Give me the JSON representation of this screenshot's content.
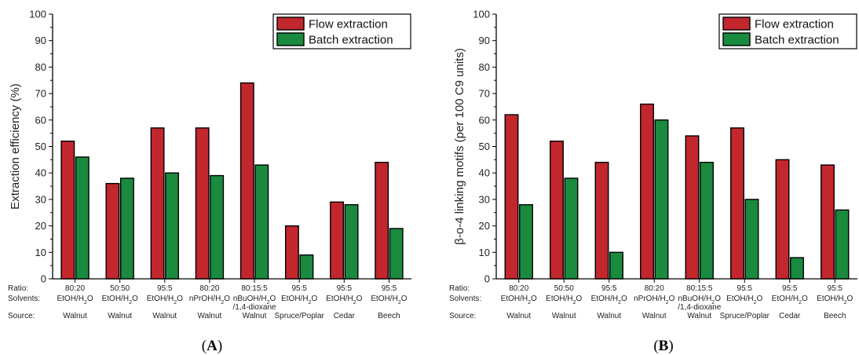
{
  "row_labels": {
    "ratio": "Ratio:",
    "solvents": "Solvents:",
    "source": "Source:"
  },
  "colors": {
    "flow": "#c1272d",
    "batch": "#1a8a3e"
  },
  "chart_data": [
    {
      "type": "bar",
      "panel": "(A)",
      "ylabel": "Extraction efficiency (%)",
      "ylim": [
        0,
        100
      ],
      "yticks": [
        0,
        10,
        20,
        30,
        40,
        50,
        60,
        70,
        80,
        90,
        100
      ],
      "legend_position": "top-right",
      "categories": [
        "Walnut",
        "Walnut",
        "Walnut",
        "Walnut",
        "Walnut",
        "Spruce/Poplar",
        "Cedar",
        "Beech"
      ],
      "ratios": [
        "80:20",
        "50:50",
        "95:5",
        "80:20",
        "80:15:5",
        "95:5",
        "95:5",
        "95:5"
      ],
      "solvents": [
        "EtOH/H₂O",
        "EtOH/H₂O",
        "EtOH/H₂O",
        "nPrOH/H₂O",
        "nBuOH/H₂O\n/1,4-dioxane",
        "EtOH/H₂O",
        "EtOH/H₂O",
        "EtOH/H₂O"
      ],
      "series": [
        {
          "name": "Flow extraction",
          "values": [
            52,
            36,
            57,
            57,
            74,
            20,
            29,
            44
          ]
        },
        {
          "name": "Batch extraction",
          "values": [
            46,
            38,
            40,
            39,
            43,
            9,
            28,
            19
          ]
        }
      ]
    },
    {
      "type": "bar",
      "panel": "(B)",
      "ylabel": "β-o-4 linking motifs (per 100 C9 units)",
      "ylim": [
        0,
        100
      ],
      "yticks": [
        0,
        10,
        20,
        30,
        40,
        50,
        60,
        70,
        80,
        90,
        100
      ],
      "legend_position": "top-right",
      "categories": [
        "Walnut",
        "Walnut",
        "Walnut",
        "Walnut",
        "Walnut",
        "Spruce/Poplar",
        "Cedar",
        "Beech"
      ],
      "ratios": [
        "80:20",
        "50:50",
        "95:5",
        "80:20",
        "80:15:5",
        "95:5",
        "95:5",
        "95:5"
      ],
      "solvents": [
        "EtOH/H₂O",
        "EtOH/H₂O",
        "EtOH/H₂O",
        "nPrOH/H₂O",
        "nBuOH/H₂O\n/1,4-dioxane",
        "EtOH/H₂O",
        "EtOH/H₂O",
        "EtOH/H₂O"
      ],
      "series": [
        {
          "name": "Flow extraction",
          "values": [
            62,
            52,
            44,
            66,
            54,
            57,
            45,
            43
          ]
        },
        {
          "name": "Batch extraction",
          "values": [
            28,
            38,
            10,
            60,
            44,
            30,
            8,
            26
          ]
        }
      ]
    }
  ]
}
